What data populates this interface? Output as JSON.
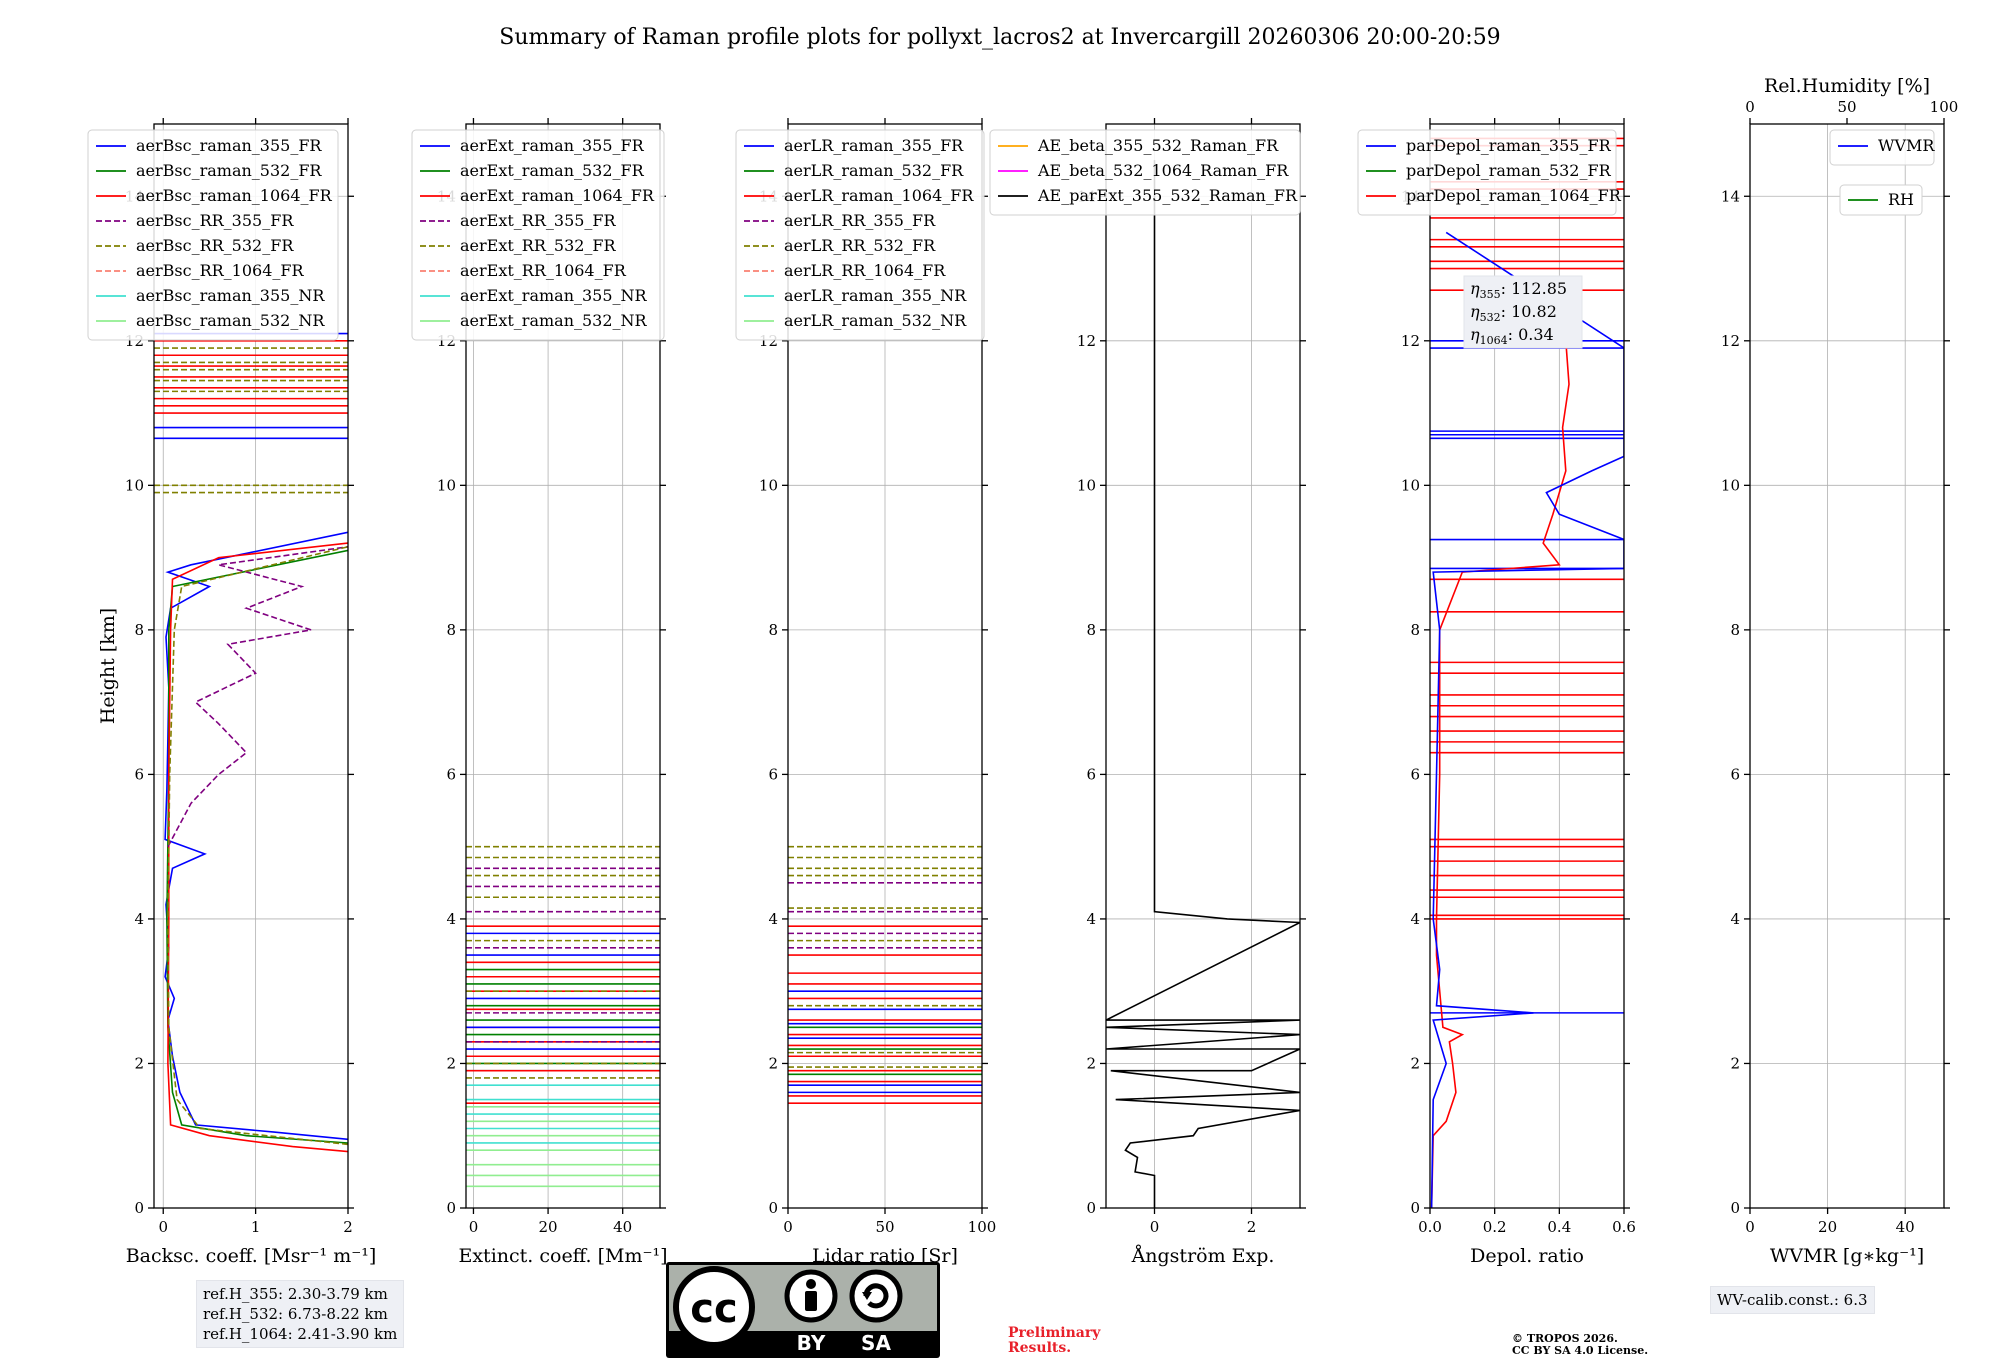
{
  "title": "Summary of Raman profile plots for pollyxt_lacros2 at Invercargill 20260306 20:00-20:59",
  "colors": {
    "c355": "#0000ff",
    "c532": "#008000",
    "c1064": "#ff0000",
    "rr355": "#800080",
    "rr532": "#808000",
    "rr1064": "#fa8072",
    "nr355": "#40e0d0",
    "nr532": "#90ee90",
    "ae_beta_355_532": "#ffa500",
    "ae_beta_532_1064": "#ff00ff",
    "ae_ext": "#000000",
    "rh": "#008000",
    "wvmr": "#0000ff",
    "prelim": "#e8202a"
  },
  "chart_data": [
    {
      "type": "line",
      "name": "backscatter",
      "xlabel": "Backsc. coeff. [Msr⁻¹ m⁻¹]",
      "ylabel": "Height [km]",
      "xlim": [
        -0.1,
        2
      ],
      "ylim": [
        0,
        15
      ],
      "xticks": [
        {
          "v": 0,
          "label": "0"
        },
        {
          "v": 1,
          "label": "1"
        },
        {
          "v": 2,
          "label": "2"
        }
      ],
      "yticks": [
        0,
        2,
        4,
        6,
        8,
        10,
        12,
        14
      ],
      "legend": [
        "aerBsc_raman_355_FR",
        "aerBsc_raman_532_FR",
        "aerBsc_raman_1064_FR",
        "aerBsc_RR_355_FR",
        "aerBsc_RR_532_FR",
        "aerBsc_RR_1064_FR",
        "aerBsc_raman_355_NR",
        "aerBsc_raman_532_NR"
      ],
      "series": [
        {
          "name": "aerBsc_raman_355_FR",
          "color": "c355",
          "points": [
            [
              2,
              0.95
            ],
            [
              1.2,
              1.05
            ],
            [
              0.35,
              1.15
            ],
            [
              0.18,
              1.6
            ],
            [
              0.1,
              2.1
            ],
            [
              0.05,
              2.6
            ],
            [
              0.12,
              2.9
            ],
            [
              0.02,
              3.2
            ],
            [
              0.06,
              3.6
            ],
            [
              0.03,
              4.2
            ],
            [
              0.1,
              4.7
            ],
            [
              0.45,
              4.9
            ],
            [
              0.02,
              5.1
            ],
            [
              0.04,
              5.8
            ],
            [
              0.05,
              6.5
            ],
            [
              0.06,
              7.2
            ],
            [
              0.03,
              7.9
            ],
            [
              0.08,
              8.3
            ],
            [
              0.5,
              8.6
            ],
            [
              0.05,
              8.8
            ],
            [
              0.3,
              8.9
            ],
            [
              2,
              9.35
            ]
          ]
        },
        {
          "name": "aerBsc_raman_532_FR",
          "color": "c532",
          "points": [
            [
              2,
              0.9
            ],
            [
              0.9,
              1.0
            ],
            [
              0.2,
              1.15
            ],
            [
              0.1,
              1.6
            ],
            [
              0.05,
              2.5
            ],
            [
              0.04,
              4
            ],
            [
              0.06,
              6
            ],
            [
              0.06,
              8
            ],
            [
              0.1,
              8.6
            ],
            [
              2,
              9.1
            ]
          ]
        },
        {
          "name": "aerBsc_raman_1064_FR",
          "color": "c1064",
          "points": [
            [
              2,
              0.78
            ],
            [
              1.4,
              0.85
            ],
            [
              0.5,
              1.0
            ],
            [
              0.08,
              1.15
            ],
            [
              0.05,
              2
            ],
            [
              0.06,
              4
            ],
            [
              0.06,
              6
            ],
            [
              0.08,
              8
            ],
            [
              0.1,
              8.7
            ],
            [
              0.6,
              9.0
            ],
            [
              2,
              9.2
            ]
          ]
        },
        {
          "name": "aerBsc_RR_355_FR",
          "color": "rr355",
          "dashed": true,
          "points": [
            [
              0.05,
              5.0
            ],
            [
              0.3,
              5.6
            ],
            [
              0.6,
              6.0
            ],
            [
              0.9,
              6.3
            ],
            [
              0.6,
              6.7
            ],
            [
              0.35,
              7.0
            ],
            [
              1.0,
              7.4
            ],
            [
              0.7,
              7.8
            ],
            [
              1.6,
              8.0
            ],
            [
              0.9,
              8.3
            ],
            [
              1.5,
              8.6
            ],
            [
              0.6,
              8.9
            ],
            [
              2,
              9.15
            ]
          ]
        },
        {
          "name": "aerBsc_RR_532_FR",
          "color": "rr532",
          "dashed": true,
          "points": [
            [
              2,
              0.88
            ],
            [
              0.4,
              1.1
            ],
            [
              0.15,
              1.5
            ],
            [
              0.06,
              2.5
            ],
            [
              0.05,
              4
            ],
            [
              0.07,
              6
            ],
            [
              0.12,
              8
            ],
            [
              0.2,
              8.6
            ],
            [
              2,
              9.15
            ]
          ]
        }
      ],
      "spikes": [
        {
          "color": "c1064",
          "y": [
            11.0,
            11.1,
            11.2,
            11.35,
            11.5,
            11.65,
            11.8,
            12.0
          ]
        },
        {
          "color": "rr532",
          "dashed": true,
          "y": [
            11.3,
            11.45,
            11.6,
            11.7,
            11.9,
            9.9,
            10.0
          ]
        },
        {
          "color": "c355",
          "y": [
            10.65,
            10.8,
            12.1
          ]
        }
      ]
    },
    {
      "type": "line",
      "name": "extinction",
      "xlabel": "Extinct. coeff. [Mm⁻¹]",
      "ylabel": "",
      "xlim": [
        -2,
        50
      ],
      "ylim": [
        0,
        15
      ],
      "xticks": [
        {
          "v": 0,
          "label": "0"
        },
        {
          "v": 20,
          "label": "20"
        },
        {
          "v": 40,
          "label": "40"
        }
      ],
      "yticks": [
        0,
        2,
        4,
        6,
        8,
        10,
        12,
        14
      ],
      "legend": [
        "aerExt_raman_355_FR",
        "aerExt_raman_532_FR",
        "aerExt_raman_1064_FR",
        "aerExt_RR_355_FR",
        "aerExt_RR_532_FR",
        "aerExt_RR_1064_FR",
        "aerExt_raman_355_NR",
        "aerExt_raman_532_NR"
      ],
      "series": [],
      "spikes": [
        {
          "color": "nr532",
          "y": [
            0.3,
            0.45,
            0.6,
            0.8,
            1.0,
            1.2,
            1.4
          ]
        },
        {
          "color": "nr355",
          "y": [
            0.9,
            1.1,
            1.3,
            1.5,
            1.7,
            1.9,
            2.1,
            2.3
          ]
        },
        {
          "color": "c1064",
          "y": [
            1.45,
            1.9,
            2.1,
            2.3,
            2.5,
            2.75,
            3.0,
            3.2,
            3.4,
            3.9
          ]
        },
        {
          "color": "c532",
          "y": [
            2.0,
            2.4,
            2.6,
            2.8,
            3.1,
            3.3
          ]
        },
        {
          "color": "c355",
          "y": [
            2.2,
            2.5,
            2.9,
            3.5,
            3.8
          ]
        },
        {
          "color": "rr355",
          "dashed": true,
          "y": [
            2.3,
            2.7,
            3.6,
            4.1,
            4.45,
            4.7
          ]
        },
        {
          "color": "rr532",
          "dashed": true,
          "y": [
            1.8,
            2.0,
            3.0,
            3.7,
            4.3,
            4.6,
            4.85,
            5.0
          ]
        }
      ]
    },
    {
      "type": "line",
      "name": "lidar_ratio",
      "xlabel": "Lidar ratio [Sr]",
      "ylabel": "",
      "xlim": [
        0,
        100
      ],
      "ylim": [
        0,
        15
      ],
      "xticks": [
        {
          "v": 0,
          "label": "0"
        },
        {
          "v": 50,
          "label": "50"
        },
        {
          "v": 100,
          "label": "100"
        }
      ],
      "yticks": [
        0,
        2,
        4,
        6,
        8,
        10,
        12,
        14
      ],
      "legend": [
        "aerLR_raman_355_FR",
        "aerLR_raman_532_FR",
        "aerLR_raman_1064_FR",
        "aerLR_RR_355_FR",
        "aerLR_RR_532_FR",
        "aerLR_RR_1064_FR",
        "aerLR_raman_355_NR",
        "aerLR_raman_532_NR"
      ],
      "series": [],
      "spikes": [
        {
          "color": "c1064",
          "y": [
            1.45,
            1.55,
            1.75,
            1.9,
            2.1,
            2.25,
            2.4,
            2.6,
            2.9,
            3.1,
            3.25,
            3.5,
            3.9
          ]
        },
        {
          "color": "c355",
          "y": [
            1.6,
            1.7,
            2.35,
            2.55,
            2.75,
            3.0
          ]
        },
        {
          "color": "c532",
          "y": [
            1.85,
            2.2,
            2.5
          ]
        },
        {
          "color": "rr355",
          "dashed": true,
          "y": [
            3.6,
            3.8,
            4.1,
            4.5
          ]
        },
        {
          "color": "rr532",
          "dashed": true,
          "y": [
            1.95,
            2.15,
            2.8,
            3.7,
            4.15,
            4.6,
            4.7,
            4.85,
            5.0
          ]
        }
      ]
    },
    {
      "type": "line",
      "name": "angstrom",
      "xlabel": "Ångström Exp.",
      "ylabel": "",
      "xlim": [
        -1,
        3
      ],
      "ylim": [
        0,
        15
      ],
      "xticks": [
        {
          "v": 0,
          "label": "0"
        },
        {
          "v": 2,
          "label": "2"
        }
      ],
      "yticks": [
        0,
        2,
        4,
        6,
        8,
        10,
        12,
        14
      ],
      "legend": [
        "AE_beta_355_532_Raman_FR",
        "AE_beta_532_1064_Raman_FR",
        "AE_parExt_355_532_Raman_FR"
      ],
      "series": [
        {
          "name": "AE_parExt_355_532_Raman_FR",
          "color": "ae_ext",
          "points": [
            [
              0,
              0
            ],
            [
              0,
              0.45
            ],
            [
              -0.4,
              0.5
            ],
            [
              -0.35,
              0.7
            ],
            [
              -0.6,
              0.8
            ],
            [
              -0.5,
              0.9
            ],
            [
              0.8,
              1.0
            ],
            [
              0.9,
              1.1
            ],
            [
              3,
              1.35
            ],
            [
              -0.8,
              1.5
            ],
            [
              3,
              1.6
            ],
            [
              -0.9,
              1.9
            ],
            [
              2,
              1.9
            ],
            [
              3,
              2.2
            ],
            [
              -1,
              2.2
            ],
            [
              3,
              2.4
            ],
            [
              -1,
              2.5
            ],
            [
              3,
              2.6
            ],
            [
              -1,
              2.6
            ],
            [
              3,
              3.95
            ],
            [
              1.5,
              4.0
            ],
            [
              0,
              4.1
            ],
            [
              0,
              14.5
            ]
          ]
        }
      ],
      "spikes": []
    },
    {
      "type": "line",
      "name": "depolarization",
      "xlabel": "Depol. ratio",
      "ylabel": "",
      "xlim": [
        0,
        0.6
      ],
      "ylim": [
        0,
        15
      ],
      "xticks": [
        {
          "v": 0,
          "label": "0.0"
        },
        {
          "v": 0.2,
          "label": "0.2"
        },
        {
          "v": 0.4,
          "label": "0.4"
        },
        {
          "v": 0.6,
          "label": "0.6"
        }
      ],
      "yticks": [
        0,
        2,
        4,
        6,
        8,
        10,
        12,
        14
      ],
      "legend": [
        "parDepol_raman_355_FR",
        "parDepol_raman_532_FR",
        "parDepol_raman_1064_FR"
      ],
      "series": [
        {
          "name": "parDepol_raman_1064_FR",
          "color": "c1064",
          "points": [
            [
              0.005,
              0
            ],
            [
              0.01,
              1.0
            ],
            [
              0.05,
              1.2
            ],
            [
              0.08,
              1.6
            ],
            [
              0.07,
              2.0
            ],
            [
              0.06,
              2.3
            ],
            [
              0.1,
              2.4
            ],
            [
              0.04,
              2.5
            ],
            [
              0.02,
              3.5
            ],
            [
              0.02,
              4.0
            ],
            [
              0.03,
              6
            ],
            [
              0.03,
              8
            ],
            [
              0.1,
              8.8
            ],
            [
              0.4,
              8.9
            ],
            [
              0.35,
              9.2
            ],
            [
              0.38,
              9.6
            ],
            [
              0.42,
              10.2
            ],
            [
              0.41,
              10.8
            ],
            [
              0.43,
              11.4
            ],
            [
              0.42,
              12.0
            ]
          ]
        },
        {
          "name": "parDepol_raman_355_FR",
          "color": "c355",
          "points": [
            [
              0.005,
              0
            ],
            [
              0.01,
              1.5
            ],
            [
              0.05,
              2.0
            ],
            [
              0.01,
              2.6
            ],
            [
              0.32,
              2.7
            ],
            [
              0.02,
              2.8
            ],
            [
              0.03,
              3.3
            ],
            [
              0.01,
              4
            ],
            [
              0.02,
              6
            ],
            [
              0.03,
              8
            ],
            [
              0.01,
              8.8
            ],
            [
              0.6,
              8.85
            ],
            [
              0.6,
              9.25
            ],
            [
              0.4,
              9.6
            ],
            [
              0.36,
              9.9
            ],
            [
              0.5,
              10.2
            ],
            [
              0.6,
              10.4
            ],
            [
              0.6,
              10.7
            ],
            [
              0.6,
              11.9
            ],
            [
              0.05,
              13.5
            ]
          ]
        }
      ],
      "spikes": [
        {
          "color": "c1064",
          "y": [
            4.0,
            4.05,
            4.3,
            4.4,
            4.6,
            4.8,
            5.0,
            5.1,
            6.3,
            6.45,
            6.6,
            6.8,
            6.95,
            7.1,
            7.4,
            7.55,
            8.25,
            8.7,
            12.7,
            13.0,
            13.1,
            13.3,
            13.4,
            13.7,
            14.1,
            14.2,
            14.7,
            14.8
          ]
        },
        {
          "color": "c355",
          "y": [
            10.65,
            10.7,
            10.75,
            11.9,
            12.0,
            9.25,
            8.85,
            2.7
          ]
        }
      ],
      "eta": [
        {
          "sub": "355",
          "value": "112.85"
        },
        {
          "sub": "532",
          "value": "10.82"
        },
        {
          "sub": "1064",
          "value": "0.34"
        }
      ]
    },
    {
      "type": "line",
      "name": "water_vapor",
      "xlabel": "WVMR [g∗kg⁻¹]",
      "ylabel": "",
      "xlim": [
        0,
        50
      ],
      "ylim": [
        0,
        15
      ],
      "xticks": [
        {
          "v": 0,
          "label": "0"
        },
        {
          "v": 20,
          "label": "20"
        },
        {
          "v": 40,
          "label": "40"
        }
      ],
      "top_xlabel": "Rel.Humidity [%]",
      "top_xlim": [
        0,
        100
      ],
      "top_xticks": [
        {
          "v": 0,
          "label": "0"
        },
        {
          "v": 50,
          "label": "50"
        },
        {
          "v": 100,
          "label": "100"
        }
      ],
      "yticks": [
        0,
        2,
        4,
        6,
        8,
        10,
        12,
        14
      ],
      "legend": [
        "WVMR"
      ],
      "legend2": [
        "RH"
      ],
      "series": [],
      "spikes": []
    }
  ],
  "ref_box": [
    "ref.H_355: 2.30-3.79 km",
    "ref.H_532: 6.73-8.22 km",
    "ref.H_1064: 2.41-3.90 km"
  ],
  "wv_calib": "WV-calib.const.: 6.3",
  "preliminary": [
    "Preliminary",
    "Results."
  ],
  "copyright": [
    "© TROPOS 2026.",
    "CC BY SA 4.0 License."
  ],
  "license_logo": {
    "cc": "cc",
    "by": "BY",
    "sa": "SA"
  }
}
